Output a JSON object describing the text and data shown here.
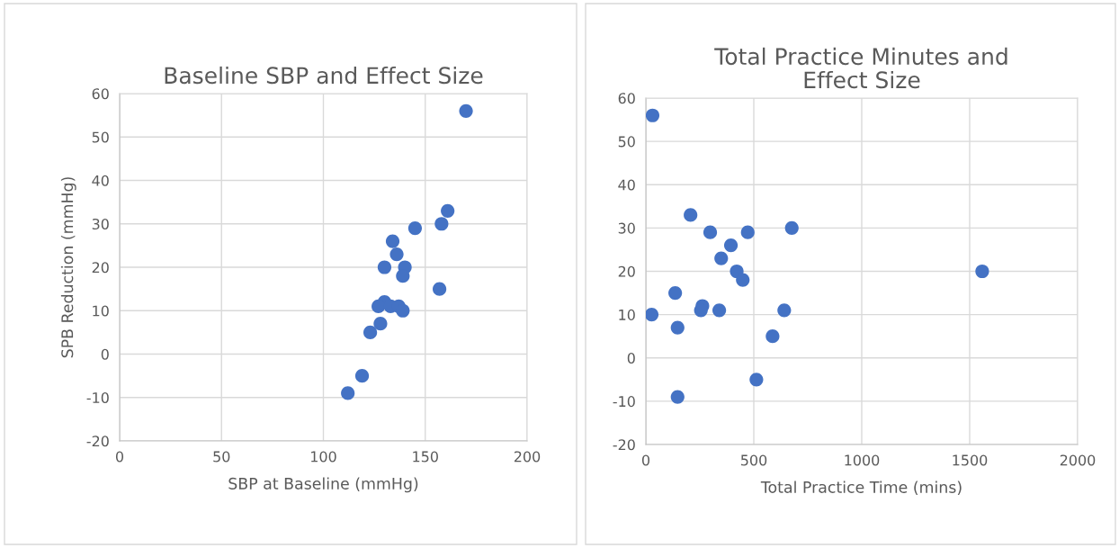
{
  "chart_data": [
    {
      "type": "scatter",
      "title": "Baseline SBP and Effect Size",
      "xlabel": "SBP at Baseline (mmHg)",
      "ylabel": "SPB Reduction (mmHg)",
      "xlim": [
        0,
        200
      ],
      "xticks": [
        0,
        50,
        100,
        150,
        200
      ],
      "ylim": [
        -20,
        60
      ],
      "yticks": [
        -20,
        -10,
        0,
        10,
        20,
        30,
        40,
        50,
        60
      ],
      "grid": true,
      "marker": "circle",
      "series": [
        {
          "color": "#4472c4",
          "x": [
            170,
            161,
            158,
            145,
            134,
            136,
            130,
            140,
            139,
            157,
            130,
            127,
            133,
            137,
            139,
            128,
            123,
            119,
            112
          ],
          "values": [
            56,
            33,
            30,
            29,
            26,
            23,
            20,
            20,
            18,
            15,
            12,
            11,
            11,
            11,
            10,
            7,
            5,
            -5,
            -9
          ]
        }
      ]
    },
    {
      "type": "scatter",
      "title": "Total Practice Minutes and Effect Size",
      "xlabel": "Total Practice Time (mins)",
      "xlim": [
        0,
        2000
      ],
      "xticks": [
        0,
        500,
        1000,
        1500,
        2000
      ],
      "ylim": [
        -20,
        60
      ],
      "yticks": [
        -20,
        -10,
        0,
        10,
        20,
        30,
        40,
        50,
        60
      ],
      "grid": true,
      "marker": "circle",
      "series": [
        {
          "color": "#4472c4",
          "x": [
            31,
            207,
            298,
            472,
            676,
            394,
            349,
            421,
            449,
            1558,
            136,
            262,
            255,
            340,
            641,
            27,
            147,
            587,
            512,
            147
          ],
          "values": [
            56,
            33,
            29,
            29,
            30,
            26,
            23,
            20,
            18,
            20,
            15,
            12,
            11,
            11,
            11,
            10,
            7,
            5,
            -5,
            -9
          ]
        }
      ]
    }
  ]
}
